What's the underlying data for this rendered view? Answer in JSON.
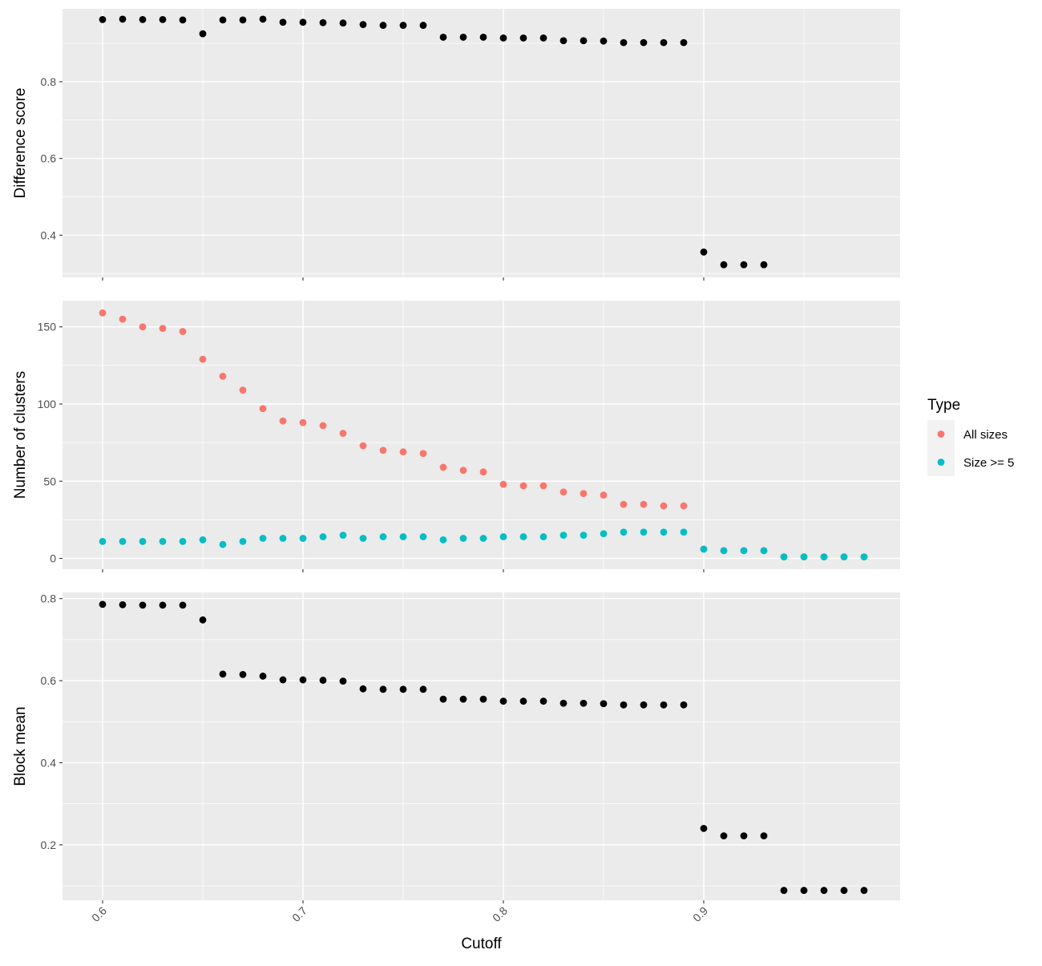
{
  "chart_data": {
    "type": "scatter",
    "xlabel": "Cutoff",
    "xlim": [
      0.58,
      0.998
    ],
    "x_ticks": [
      0.6,
      0.7,
      0.8,
      0.9
    ],
    "x_tick_labels": [
      "0.6",
      "0.7",
      "0.8",
      "0.9"
    ],
    "grid": true,
    "legend": {
      "title": "Type",
      "position": "right",
      "entries": [
        {
          "label": "All sizes",
          "color": "#F8766D"
        },
        {
          "label": "Size >= 5",
          "color": "#00BFC4"
        }
      ]
    },
    "panels": [
      {
        "ylabel": "Difference score",
        "ylim": [
          0.29,
          0.99
        ],
        "y_ticks": [
          0.4,
          0.6,
          0.8
        ],
        "y_tick_labels": [
          "0.4",
          "0.6",
          "0.8"
        ],
        "series": [
          {
            "color": "#000000",
            "x": [
              0.6,
              0.61,
              0.62,
              0.63,
              0.64,
              0.65,
              0.66,
              0.67,
              0.68,
              0.69,
              0.7,
              0.71,
              0.72,
              0.73,
              0.74,
              0.75,
              0.76,
              0.77,
              0.78,
              0.79,
              0.8,
              0.81,
              0.82,
              0.83,
              0.84,
              0.85,
              0.86,
              0.87,
              0.88,
              0.89,
              0.9,
              0.91,
              0.92,
              0.93
            ],
            "y": [
              0.962,
              0.963,
              0.962,
              0.962,
              0.961,
              0.925,
              0.961,
              0.961,
              0.963,
              0.955,
              0.955,
              0.954,
              0.953,
              0.949,
              0.947,
              0.947,
              0.947,
              0.916,
              0.916,
              0.916,
              0.914,
              0.914,
              0.914,
              0.907,
              0.907,
              0.906,
              0.902,
              0.902,
              0.902,
              0.902,
              0.356,
              0.323,
              0.323,
              0.323
            ]
          }
        ]
      },
      {
        "ylabel": "Number of clusters",
        "ylim": [
          -7,
          167
        ],
        "y_ticks": [
          0,
          50,
          100,
          150
        ],
        "y_tick_labels": [
          "0",
          "50",
          "100",
          "150"
        ],
        "series": [
          {
            "name": "All sizes",
            "color": "#F8766D",
            "x": [
              0.6,
              0.61,
              0.62,
              0.63,
              0.64,
              0.65,
              0.66,
              0.67,
              0.68,
              0.69,
              0.7,
              0.71,
              0.72,
              0.73,
              0.74,
              0.75,
              0.76,
              0.77,
              0.78,
              0.79,
              0.8,
              0.81,
              0.82,
              0.83,
              0.84,
              0.85,
              0.86,
              0.87,
              0.88,
              0.89,
              0.9,
              0.91,
              0.92,
              0.93,
              0.94,
              0.95,
              0.96,
              0.97,
              0.98
            ],
            "y": [
              159,
              155,
              150,
              149,
              147,
              129,
              118,
              109,
              97,
              89,
              88,
              86,
              81,
              73,
              70,
              69,
              68,
              59,
              57,
              56,
              48,
              47,
              47,
              43,
              42,
              41,
              35,
              35,
              34,
              34,
              6,
              5,
              5,
              5,
              1,
              1,
              1,
              1,
              1
            ]
          },
          {
            "name": "Size >= 5",
            "color": "#00BFC4",
            "x": [
              0.6,
              0.61,
              0.62,
              0.63,
              0.64,
              0.65,
              0.66,
              0.67,
              0.68,
              0.69,
              0.7,
              0.71,
              0.72,
              0.73,
              0.74,
              0.75,
              0.76,
              0.77,
              0.78,
              0.79,
              0.8,
              0.81,
              0.82,
              0.83,
              0.84,
              0.85,
              0.86,
              0.87,
              0.88,
              0.89,
              0.9,
              0.91,
              0.92,
              0.93,
              0.94,
              0.95,
              0.96,
              0.97,
              0.98
            ],
            "y": [
              11,
              11,
              11,
              11,
              11,
              12,
              9,
              11,
              13,
              13,
              13,
              14,
              15,
              13,
              14,
              14,
              14,
              12,
              13,
              13,
              14,
              14,
              14,
              15,
              15,
              16,
              17,
              17,
              17,
              17,
              6,
              5,
              5,
              5,
              1,
              1,
              1,
              1,
              1
            ]
          }
        ]
      },
      {
        "ylabel": "Block mean",
        "ylim": [
          0.065,
          0.815
        ],
        "y_ticks": [
          0.2,
          0.4,
          0.6,
          0.8
        ],
        "y_tick_labels": [
          "0.2",
          "0.4",
          "0.6",
          "0.8"
        ],
        "series": [
          {
            "color": "#000000",
            "x": [
              0.6,
              0.61,
              0.62,
              0.63,
              0.64,
              0.65,
              0.66,
              0.67,
              0.68,
              0.69,
              0.7,
              0.71,
              0.72,
              0.73,
              0.74,
              0.75,
              0.76,
              0.77,
              0.78,
              0.79,
              0.8,
              0.81,
              0.82,
              0.83,
              0.84,
              0.85,
              0.86,
              0.87,
              0.88,
              0.89,
              0.9,
              0.91,
              0.92,
              0.93,
              0.94,
              0.95,
              0.96,
              0.97,
              0.98
            ],
            "y": [
              0.786,
              0.785,
              0.784,
              0.784,
              0.784,
              0.748,
              0.616,
              0.615,
              0.611,
              0.602,
              0.602,
              0.601,
              0.599,
              0.58,
              0.579,
              0.579,
              0.579,
              0.555,
              0.555,
              0.555,
              0.55,
              0.55,
              0.55,
              0.545,
              0.545,
              0.544,
              0.541,
              0.541,
              0.541,
              0.541,
              0.24,
              0.222,
              0.222,
              0.222,
              0.089,
              0.089,
              0.089,
              0.089,
              0.089
            ]
          }
        ]
      }
    ]
  }
}
